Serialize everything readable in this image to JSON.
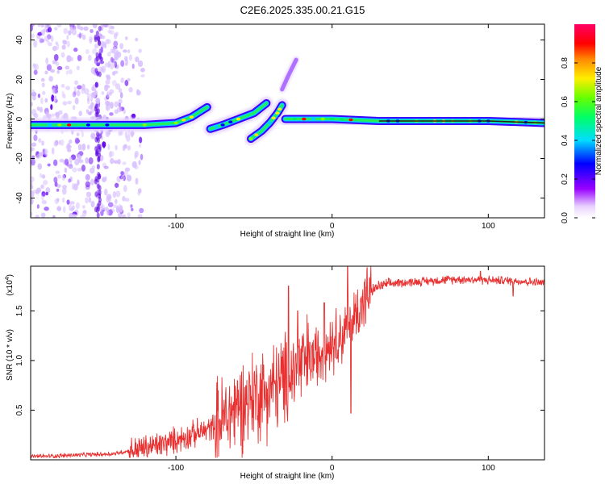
{
  "title": "C2E6.2025.335.00.21.G15",
  "colorbar": {
    "label": "Normalized spectral amplitude",
    "range": [
      0,
      1
    ],
    "ticks": [
      {
        "v": 0.0,
        "t": "0.0"
      },
      {
        "v": 0.2,
        "t": "0.2"
      },
      {
        "v": 0.4,
        "t": "0.4"
      },
      {
        "v": 0.6,
        "t": "0.6"
      },
      {
        "v": 0.8,
        "t": "0.8"
      }
    ]
  },
  "chart_data": [
    {
      "type": "heatmap",
      "xlabel": "Height of straight line (km)",
      "ylabel": "Frequency (Hz)",
      "xlim": [
        -193,
        136
      ],
      "ylim": [
        -50,
        48
      ],
      "xticks": [
        {
          "v": -100,
          "t": "-100"
        },
        {
          "v": 0,
          "t": "0"
        },
        {
          "v": 100,
          "t": "100"
        }
      ],
      "yticks": [
        {
          "v": -40,
          "t": "-40"
        },
        {
          "v": -20,
          "t": "-20"
        },
        {
          "v": 0,
          "t": "0"
        },
        {
          "v": 20,
          "t": "20"
        },
        {
          "v": 40,
          "t": "40"
        }
      ],
      "traces": [
        {
          "name": "main-low",
          "points": [
            [
              -193,
              -3
            ],
            [
              -150,
              -3
            ],
            [
              -120,
              -3
            ],
            [
              -100,
              -2
            ],
            [
              -90,
              1
            ],
            [
              -80,
              6
            ]
          ]
        },
        {
          "name": "segment-a",
          "points": [
            [
              -78,
              -5
            ],
            [
              -70,
              -3
            ],
            [
              -60,
              0
            ],
            [
              -50,
              3
            ],
            [
              -42,
              8
            ]
          ]
        },
        {
          "name": "segment-b",
          "points": [
            [
              -52,
              -10
            ],
            [
              -45,
              -6
            ],
            [
              -40,
              -2
            ],
            [
              -35,
              3
            ],
            [
              -32,
              7
            ]
          ]
        },
        {
          "name": "weak-rising",
          "points": [
            [
              -32,
              15
            ],
            [
              -28,
              22
            ],
            [
              -23,
              30
            ]
          ]
        },
        {
          "name": "main-high",
          "points": [
            [
              -30,
              0
            ],
            [
              0,
              0
            ],
            [
              30,
              -1
            ],
            [
              60,
              -1
            ],
            [
              100,
              -1
            ],
            [
              136,
              -2
            ]
          ]
        }
      ],
      "noise_region_km": [
        -193,
        -130
      ]
    },
    {
      "type": "line",
      "xlabel": "Height of straight line (km)",
      "ylabel": "SNR (10 * v/v)",
      "scale_label": "(x10",
      "scale_exp": "4",
      "xlim": [
        -193,
        136
      ],
      "ylim": [
        0,
        1.95
      ],
      "xticks": [
        {
          "v": -100,
          "t": "-100"
        },
        {
          "v": 0,
          "t": "0"
        },
        {
          "v": 100,
          "t": "100"
        }
      ],
      "yticks": [
        {
          "v": 0.5,
          "t": "0.5"
        },
        {
          "v": 1.0,
          "t": "1.0"
        },
        {
          "v": 1.5,
          "t": "1.5"
        }
      ],
      "series": [
        {
          "name": "SNR",
          "color": "#e83030",
          "envelope": [
            [
              -193,
              0.03
            ],
            [
              -160,
              0.05
            ],
            [
              -140,
              0.06
            ],
            [
              -130,
              0.09
            ],
            [
              -120,
              0.12
            ],
            [
              -110,
              0.15
            ],
            [
              -100,
              0.2
            ],
            [
              -90,
              0.25
            ],
            [
              -80,
              0.3
            ],
            [
              -70,
              0.4
            ],
            [
              -60,
              0.55
            ],
            [
              -50,
              0.65
            ],
            [
              -40,
              0.7
            ],
            [
              -30,
              0.8
            ],
            [
              -20,
              0.95
            ],
            [
              -10,
              1.05
            ],
            [
              0,
              1.2
            ],
            [
              10,
              1.3
            ],
            [
              15,
              1.45
            ],
            [
              20,
              1.6
            ],
            [
              25,
              1.7
            ],
            [
              30,
              1.75
            ],
            [
              40,
              1.78
            ],
            [
              60,
              1.8
            ],
            [
              80,
              1.82
            ],
            [
              100,
              1.81
            ],
            [
              120,
              1.8
            ],
            [
              136,
              1.78
            ]
          ],
          "spikes": [
            [
              10,
              1.95
            ],
            [
              -28,
              1.75
            ],
            [
              -22,
              1.5
            ],
            [
              -5,
              1.58
            ],
            [
              12,
              0.47
            ],
            [
              116,
              1.65
            ],
            [
              95,
              1.9
            ]
          ]
        }
      ]
    }
  ]
}
